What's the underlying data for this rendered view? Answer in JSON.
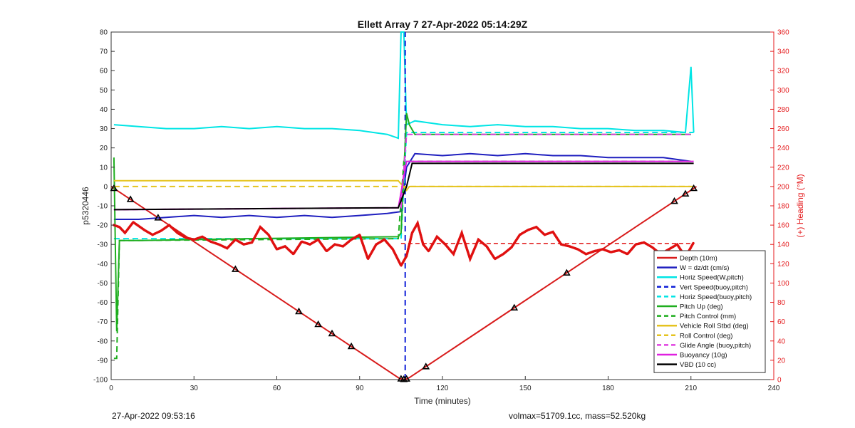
{
  "chart_data": {
    "type": "line",
    "title": "Ellett Array 7 27-Apr-2022 05:14:29Z",
    "xlabel": "Time (minutes)",
    "ylabel": "p5320446",
    "y2label": "(+) Heading (°M)",
    "xlim": [
      0,
      240
    ],
    "ylim": [
      -100,
      80
    ],
    "y2lim": [
      0,
      360
    ],
    "xticks": [
      0,
      30,
      60,
      90,
      120,
      150,
      180,
      210,
      240
    ],
    "yticks": [
      -100,
      -90,
      -80,
      -70,
      -60,
      -50,
      -40,
      -30,
      -20,
      -10,
      0,
      10,
      20,
      30,
      40,
      50,
      60,
      70,
      80
    ],
    "y2ticks": [
      0,
      20,
      40,
      60,
      80,
      100,
      120,
      140,
      160,
      180,
      200,
      220,
      240,
      260,
      280,
      300,
      320,
      340,
      360
    ],
    "grid": false,
    "legend_position": "bottom-right",
    "colors": {
      "axis_right": "#e41a1c",
      "depth": "#d81b1b",
      "w": "#1f1fbf",
      "horiz": "#00e5e5",
      "vert": "#1020d8",
      "pitch": "#1fae1f",
      "roll": "#e5c31f",
      "glide": "#e040e0",
      "buoyancy": "#e020e0",
      "vbd": "#000000",
      "heading": "#e01010"
    },
    "series": [
      {
        "name": "Depth (10m)",
        "style": "solid",
        "color": "#d81b1b",
        "x": [
          0,
          104.5,
          106.5,
          108,
          212
        ],
        "y": [
          0,
          -99.5,
          -100,
          -99,
          0
        ]
      },
      {
        "name": "W = dz/dt (cm/s)",
        "style": "solid",
        "color": "#1f1fbf",
        "x": [
          1,
          10,
          20,
          30,
          40,
          50,
          60,
          70,
          80,
          90,
          100,
          105,
          107,
          110,
          120,
          130,
          140,
          150,
          160,
          170,
          180,
          190,
          200,
          210
        ],
        "y": [
          -17,
          -17,
          -16,
          -15,
          -16,
          -15,
          -16,
          -15,
          -16,
          -15,
          -14,
          -13,
          10,
          17,
          16,
          17,
          16,
          17,
          16,
          16,
          15,
          15,
          15,
          13
        ]
      },
      {
        "name": "Horiz Speed(W,pitch)",
        "style": "solid",
        "color": "#00e5e5",
        "x": [
          1,
          10,
          20,
          30,
          40,
          50,
          60,
          70,
          80,
          90,
          100,
          104,
          105,
          106,
          107,
          110,
          120,
          130,
          140,
          150,
          160,
          170,
          180,
          190,
          200,
          208,
          210,
          211
        ],
        "y": [
          32,
          31,
          30,
          30,
          31,
          30,
          31,
          30,
          30,
          29,
          27,
          25,
          80,
          80,
          32,
          34,
          32,
          31,
          32,
          31,
          31,
          30,
          30,
          29,
          29,
          28,
          62,
          28
        ]
      },
      {
        "name": "Vert Speed(buoy,pitch)",
        "style": "dashed",
        "color": "#1020d8",
        "x": [
          106.5,
          106.5
        ],
        "y": [
          -100,
          80
        ]
      },
      {
        "name": "Horiz Speed(buoy,pitch)",
        "style": "dashed",
        "color": "#00e5e5",
        "x": [
          1,
          105,
          107,
          211
        ],
        "y": [
          -27,
          -27,
          28,
          28
        ]
      },
      {
        "name": "Pitch Up (deg)",
        "style": "solid",
        "color": "#1fae1f",
        "x": [
          1,
          2,
          3,
          4,
          10,
          50,
          104,
          105,
          107,
          108,
          110,
          150,
          210
        ],
        "y": [
          15,
          -75,
          -28,
          -28,
          -28,
          -27,
          -26,
          -24,
          38,
          32,
          27,
          27,
          27
        ]
      },
      {
        "name": "Pitch Control (mm)",
        "style": "dashed",
        "color": "#1fae1f",
        "x": [
          1,
          2,
          3,
          104,
          106,
          108,
          210
        ],
        "y": [
          -89,
          -89,
          -28,
          -27,
          13,
          13,
          13
        ]
      },
      {
        "name": "Vehicle Roll Stbd (deg)",
        "style": "solid",
        "color": "#e5c31f",
        "x": [
          1,
          50,
          104,
          107,
          108,
          150,
          210
        ],
        "y": [
          3,
          3,
          3,
          -2,
          0,
          0,
          0
        ]
      },
      {
        "name": "Roll Control (deg)",
        "style": "dashed",
        "color": "#e5c31f",
        "x": [
          1,
          104,
          107,
          211
        ],
        "y": [
          0,
          0,
          0,
          0
        ]
      },
      {
        "name": "Glide Angle (buoy,pitch)",
        "style": "dashed",
        "color": "#e040e0",
        "x": [
          1,
          105,
          107,
          211
        ],
        "y": [
          -12,
          -11,
          27,
          27
        ]
      },
      {
        "name": "Buoyancy (10g)",
        "style": "solid",
        "color": "#e020e0",
        "x": [
          1,
          104,
          107,
          211
        ],
        "y": [
          -12,
          -11,
          13,
          13
        ]
      },
      {
        "name": "VBD (10 cc)",
        "style": "solid",
        "color": "#000000",
        "x": [
          1,
          104,
          107,
          109,
          211
        ],
        "y": [
          -12,
          -11,
          0,
          12,
          12
        ]
      }
    ],
    "heading_reference": 141,
    "heading": {
      "x": [
        1,
        3,
        5,
        8,
        12,
        15,
        18,
        21,
        24,
        27,
        30,
        33,
        36,
        39,
        42,
        45,
        48,
        51,
        54,
        57,
        60,
        63,
        66,
        69,
        72,
        75,
        78,
        81,
        84,
        87,
        90,
        93,
        96,
        99,
        102,
        105,
        107,
        109,
        111,
        113,
        115,
        118,
        121,
        124,
        127,
        130,
        133,
        136,
        139,
        142,
        145,
        148,
        151,
        154,
        157,
        160,
        163,
        166,
        169,
        172,
        175,
        178,
        181,
        184,
        187,
        190,
        193,
        196,
        199,
        202,
        205,
        208,
        211
      ],
      "y": [
        160,
        158,
        152,
        163,
        155,
        150,
        154,
        160,
        152,
        147,
        145,
        148,
        143,
        140,
        136,
        145,
        140,
        142,
        158,
        150,
        135,
        138,
        130,
        143,
        140,
        145,
        133,
        140,
        138,
        145,
        150,
        125,
        140,
        145,
        135,
        118,
        128,
        152,
        162,
        140,
        133,
        148,
        140,
        130,
        152,
        125,
        145,
        138,
        125,
        130,
        137,
        150,
        155,
        158,
        150,
        153,
        140,
        138,
        135,
        130,
        133,
        135,
        132,
        134,
        130,
        140,
        142,
        137,
        130,
        135,
        140,
        127,
        142
      ]
    },
    "depth_markers_x": [
      1,
      7,
      17,
      45,
      68,
      75,
      80,
      87,
      105,
      106,
      107,
      114,
      146,
      165,
      204,
      208,
      211
    ],
    "footer_left": "27-Apr-2022 09:53:16",
    "footer_right": "volmax=51709.1cc, mass=52.520kg"
  }
}
